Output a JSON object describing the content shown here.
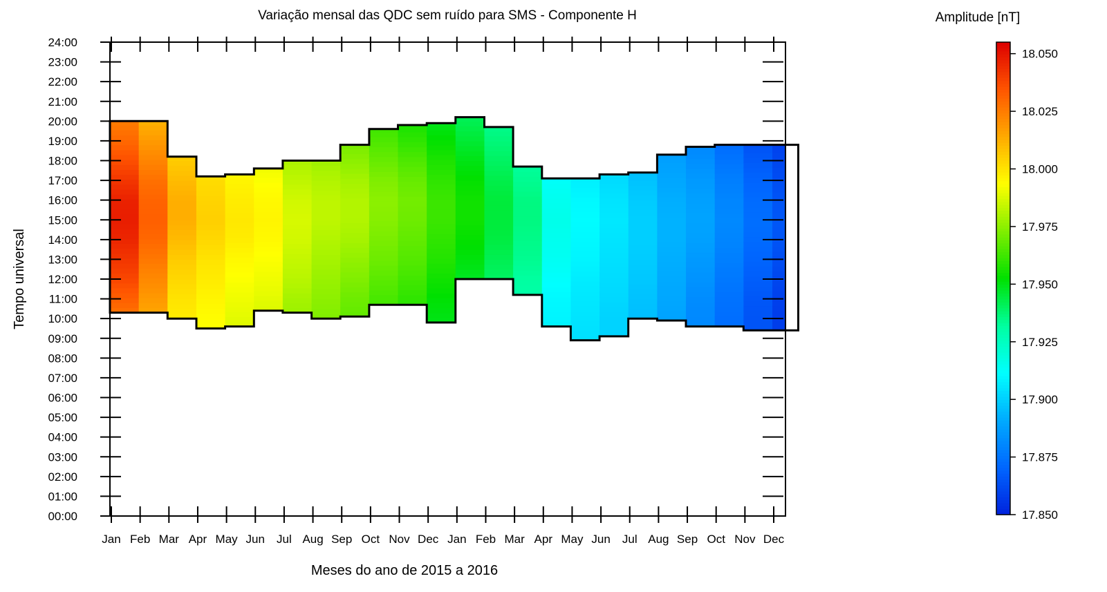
{
  "chart_data": {
    "type": "heatmap",
    "title": "Variação mensal das QDC sem ruído para SMS - Componente H",
    "xlabel": "Meses do ano de 2015 a 2016",
    "ylabel": "Tempo universal",
    "colorbar_title": "Amplitude [nT]",
    "x_ticks": [
      "Jan",
      "Feb",
      "Mar",
      "Apr",
      "May",
      "Jun",
      "Jul",
      "Aug",
      "Sep",
      "Oct",
      "Nov",
      "Dec",
      "Jan",
      "Feb",
      "Mar",
      "Apr",
      "May",
      "Jun",
      "Jul",
      "Aug",
      "Sep",
      "Oct",
      "Nov",
      "Dec"
    ],
    "y_ticks": [
      "00:00",
      "01:00",
      "02:00",
      "03:00",
      "04:00",
      "05:00",
      "06:00",
      "07:00",
      "08:00",
      "09:00",
      "10:00",
      "11:00",
      "12:00",
      "13:00",
      "14:00",
      "15:00",
      "16:00",
      "17:00",
      "18:00",
      "19:00",
      "20:00",
      "21:00",
      "22:00",
      "23:00",
      "24:00"
    ],
    "ylim": [
      0,
      24
    ],
    "colorbar_ticks": [
      "17.850",
      "17.875",
      "17.900",
      "17.925",
      "17.950",
      "17.975",
      "18.000",
      "18.025",
      "18.050"
    ],
    "zlim": [
      17.85,
      18.055
    ],
    "colormap": [
      "#0022dd",
      "#0066ff",
      "#00aaff",
      "#00ffff",
      "#00ffa0",
      "#00e000",
      "#80ee00",
      "#ffff00",
      "#ffaa00",
      "#ff5500",
      "#dd0000"
    ],
    "time_bounds": {
      "start": [
        10.3,
        10.3,
        10.0,
        9.5,
        9.6,
        10.4,
        10.3,
        10.0,
        10.1,
        10.7,
        10.7,
        9.8,
        12.0,
        12.0,
        11.2,
        9.6,
        8.9,
        9.1,
        10.0,
        9.9,
        9.6,
        9.6,
        9.4,
        9.4
      ],
      "end": [
        20.0,
        20.0,
        18.2,
        17.2,
        17.3,
        17.6,
        18.0,
        18.0,
        18.8,
        19.6,
        19.8,
        19.9,
        20.2,
        19.7,
        17.7,
        17.1,
        17.1,
        17.3,
        17.4,
        18.3,
        18.7,
        18.8,
        18.8,
        18.8
      ]
    },
    "grid_hours": [
      9,
      10,
      11,
      12,
      13,
      14,
      15,
      16,
      17,
      18,
      19,
      20,
      21
    ],
    "amplitude": [
      [
        18.02,
        18.026,
        18.032,
        18.038,
        18.042,
        18.046,
        18.048,
        18.047,
        18.042,
        18.036,
        18.03,
        18.025,
        18.022
      ],
      [
        18.01,
        18.014,
        18.018,
        18.022,
        18.026,
        18.03,
        18.032,
        18.031,
        18.028,
        18.023,
        18.018,
        18.012,
        18.01
      ],
      [
        17.996,
        17.998,
        18.0,
        18.003,
        18.006,
        18.01,
        18.013,
        18.013,
        18.01,
        18.006,
        18.002,
        17.998,
        17.996
      ],
      [
        17.993,
        17.994,
        17.996,
        17.998,
        18.0,
        18.003,
        18.005,
        18.004,
        18.002,
        17.999,
        17.996,
        17.993,
        17.992
      ],
      [
        17.988,
        17.989,
        17.991,
        17.993,
        17.995,
        17.998,
        17.999,
        17.998,
        17.996,
        17.994,
        17.991,
        17.988,
        17.987
      ],
      [
        17.986,
        17.987,
        17.989,
        17.991,
        17.993,
        17.995,
        17.996,
        17.995,
        17.993,
        17.99,
        17.987,
        17.985,
        17.984
      ],
      [
        17.976,
        17.977,
        17.979,
        17.982,
        17.984,
        17.986,
        17.987,
        17.986,
        17.983,
        17.98,
        17.977,
        17.975,
        17.974
      ],
      [
        17.972,
        17.973,
        17.975,
        17.977,
        17.979,
        17.981,
        17.983,
        17.983,
        17.981,
        17.978,
        17.975,
        17.972,
        17.971
      ],
      [
        17.966,
        17.968,
        17.97,
        17.973,
        17.976,
        17.979,
        17.981,
        17.981,
        17.979,
        17.975,
        17.971,
        17.967,
        17.965
      ],
      [
        17.96,
        17.962,
        17.964,
        17.967,
        17.97,
        17.972,
        17.974,
        17.975,
        17.973,
        17.969,
        17.965,
        17.961,
        17.959
      ],
      [
        17.955,
        17.957,
        17.96,
        17.963,
        17.966,
        17.968,
        17.97,
        17.971,
        17.969,
        17.965,
        17.96,
        17.956,
        17.954
      ],
      [
        17.949,
        17.95,
        17.952,
        17.955,
        17.958,
        17.96,
        17.962,
        17.962,
        17.96,
        17.957,
        17.953,
        17.949,
        17.947
      ],
      [
        17.942,
        17.943,
        17.945,
        17.948,
        17.951,
        17.953,
        17.955,
        17.955,
        17.953,
        17.95,
        17.946,
        17.942,
        17.94
      ],
      [
        17.935,
        17.936,
        17.938,
        17.94,
        17.942,
        17.944,
        17.945,
        17.945,
        17.943,
        17.94,
        17.937,
        17.934,
        17.933
      ],
      [
        17.928,
        17.929,
        17.93,
        17.932,
        17.934,
        17.935,
        17.936,
        17.936,
        17.934,
        17.932,
        17.929,
        17.926,
        17.925
      ],
      [
        17.908,
        17.909,
        17.91,
        17.912,
        17.914,
        17.915,
        17.916,
        17.915,
        17.913,
        17.911,
        17.909,
        17.907,
        17.906
      ],
      [
        17.904,
        17.905,
        17.906,
        17.907,
        17.909,
        17.91,
        17.911,
        17.91,
        17.908,
        17.906,
        17.904,
        17.902,
        17.901
      ],
      [
        17.901,
        17.901,
        17.902,
        17.903,
        17.904,
        17.905,
        17.906,
        17.905,
        17.903,
        17.901,
        17.9,
        17.898,
        17.897
      ],
      [
        17.896,
        17.896,
        17.897,
        17.898,
        17.899,
        17.9,
        17.9,
        17.899,
        17.897,
        17.895,
        17.893,
        17.891,
        17.89
      ],
      [
        17.889,
        17.889,
        17.89,
        17.891,
        17.892,
        17.893,
        17.893,
        17.892,
        17.89,
        17.888,
        17.886,
        17.884,
        17.883
      ],
      [
        17.881,
        17.881,
        17.882,
        17.884,
        17.886,
        17.888,
        17.889,
        17.888,
        17.886,
        17.883,
        17.88,
        17.877,
        17.876
      ],
      [
        17.873,
        17.873,
        17.874,
        17.876,
        17.878,
        17.88,
        17.881,
        17.88,
        17.878,
        17.875,
        17.872,
        17.869,
        17.868
      ],
      [
        17.865,
        17.865,
        17.866,
        17.868,
        17.87,
        17.872,
        17.873,
        17.872,
        17.87,
        17.867,
        17.864,
        17.862,
        17.861
      ],
      [
        17.858,
        17.858,
        17.859,
        17.861,
        17.863,
        17.865,
        17.866,
        17.865,
        17.863,
        17.861,
        17.859,
        17.857,
        17.856
      ]
    ]
  }
}
